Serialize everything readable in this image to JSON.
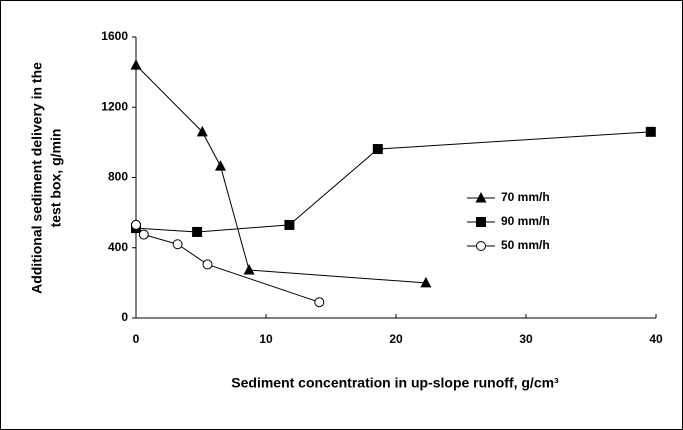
{
  "chart_data": {
    "type": "line",
    "x_label": "Sediment concentration in up-slope runoff, g/cm³",
    "y_label": [
      "Additional sediment delivery in the",
      "test box, g/min"
    ],
    "xlim": [
      0,
      40
    ],
    "xticks": [
      0,
      10,
      20,
      30,
      40
    ],
    "ylim": [
      0,
      1600
    ],
    "yticks": [
      0,
      400,
      800,
      1200,
      1600
    ],
    "legend": "right",
    "series": [
      {
        "name": "70 mm/h",
        "color": "#000000",
        "marker": "triangle",
        "x": [
          0,
          5.1,
          6.5,
          8.7,
          22.3
        ],
        "values": [
          1440,
          1060,
          865,
          273,
          200
        ]
      },
      {
        "name": "90 mm/h",
        "color": "#000000",
        "marker": "square",
        "x": [
          0,
          4.7,
          11.8,
          18.6,
          39.6
        ],
        "values": [
          512,
          490,
          530,
          962,
          1060
        ]
      },
      {
        "name": "50 mm/h",
        "color": "#000000",
        "marker": "circle",
        "x": [
          0,
          0.6,
          3.2,
          5.5,
          14.1
        ],
        "values": [
          530,
          475,
          420,
          305,
          90
        ]
      }
    ]
  }
}
